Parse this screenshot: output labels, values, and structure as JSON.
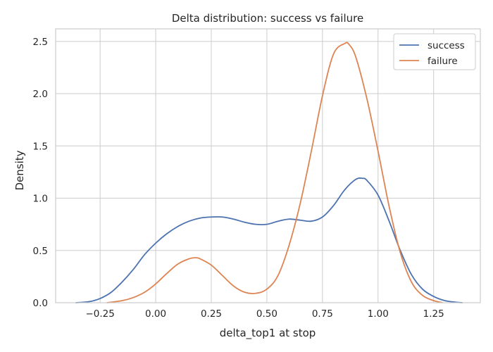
{
  "chart_data": {
    "type": "line",
    "title": "Delta distribution: success vs failure",
    "xlabel": "delta_top1 at stop",
    "ylabel": "Density",
    "xlim": [
      -0.45,
      1.46
    ],
    "ylim": [
      0,
      2.62
    ],
    "xticks": [
      -0.25,
      0.0,
      0.25,
      0.5,
      0.75,
      1.0,
      1.25
    ],
    "xtick_labels": [
      "−0.25",
      "0.00",
      "0.25",
      "0.50",
      "0.75",
      "1.00",
      "1.25"
    ],
    "yticks": [
      0.0,
      0.5,
      1.0,
      1.5,
      2.0,
      2.5
    ],
    "ytick_labels": [
      "0.0",
      "0.5",
      "1.0",
      "1.5",
      "2.0",
      "2.5"
    ],
    "grid": true,
    "legend_position": "top-right",
    "series": [
      {
        "name": "success",
        "color": "#4c72b0",
        "x": [
          -0.36,
          -0.3,
          -0.25,
          -0.2,
          -0.15,
          -0.1,
          -0.05,
          0.0,
          0.05,
          0.1,
          0.15,
          0.2,
          0.25,
          0.3,
          0.35,
          0.4,
          0.45,
          0.5,
          0.55,
          0.6,
          0.65,
          0.7,
          0.75,
          0.8,
          0.85,
          0.9,
          0.93,
          0.95,
          1.0,
          1.05,
          1.1,
          1.15,
          1.2,
          1.25,
          1.3,
          1.35,
          1.38
        ],
        "y": [
          0.0,
          0.01,
          0.04,
          0.1,
          0.2,
          0.32,
          0.46,
          0.57,
          0.66,
          0.73,
          0.78,
          0.81,
          0.82,
          0.82,
          0.8,
          0.77,
          0.75,
          0.75,
          0.78,
          0.8,
          0.79,
          0.78,
          0.82,
          0.93,
          1.08,
          1.18,
          1.19,
          1.17,
          1.03,
          0.78,
          0.5,
          0.27,
          0.13,
          0.06,
          0.02,
          0.005,
          0.0
        ]
      },
      {
        "name": "failure",
        "color": "#dd8452",
        "x": [
          -0.22,
          -0.15,
          -0.1,
          -0.05,
          0.0,
          0.05,
          0.1,
          0.15,
          0.18,
          0.2,
          0.25,
          0.3,
          0.35,
          0.4,
          0.45,
          0.5,
          0.55,
          0.6,
          0.65,
          0.7,
          0.75,
          0.8,
          0.85,
          0.87,
          0.9,
          0.95,
          1.0,
          1.05,
          1.1,
          1.15,
          1.2,
          1.25,
          1.29
        ],
        "y": [
          0.0,
          0.02,
          0.05,
          0.1,
          0.18,
          0.28,
          0.37,
          0.42,
          0.43,
          0.42,
          0.36,
          0.26,
          0.16,
          0.1,
          0.09,
          0.13,
          0.26,
          0.55,
          0.95,
          1.45,
          1.98,
          2.38,
          2.48,
          2.47,
          2.35,
          1.95,
          1.45,
          0.92,
          0.48,
          0.2,
          0.07,
          0.02,
          0.0
        ]
      }
    ]
  }
}
